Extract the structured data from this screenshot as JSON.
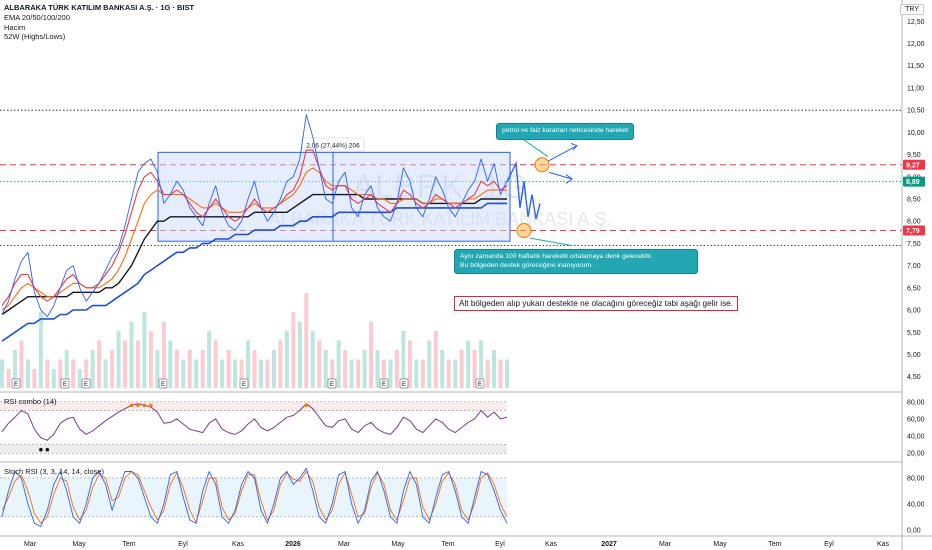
{
  "header": {
    "title": "ALBARAKA TÜRK KATILIM BANKASI A.Ş. · 1G · BIST",
    "indicators": [
      "EMA 20/50/100/200",
      "Hacim",
      "52W (Highs/Lows)"
    ],
    "currency": "TRY"
  },
  "watermark": {
    "symbol": "ALBRK, 1G",
    "name": "ALBARAKA TÜRK KATILIM BANKASI A.Ş."
  },
  "price_axis": {
    "ticks": [
      "12,50",
      "12,00",
      "11,50",
      "11,00",
      "10,50",
      "10,00",
      "9,50",
      "9,00",
      "8,50",
      "8,00",
      "7,50",
      "7,00",
      "6,50",
      "6,00",
      "5,50",
      "5,00",
      "4,50"
    ],
    "labels": {
      "upper_level": "9,27",
      "last_price": "8,89",
      "lower_level": "7,79"
    }
  },
  "rsi_pane": {
    "label": "RSI combo (14)",
    "ticks": [
      "80,00",
      "60,00",
      "40,00",
      "20,00"
    ]
  },
  "stoch_pane": {
    "label": "Stoch RSI (3, 3, 14, 14, close)",
    "ticks": [
      "80,00",
      "40,00",
      "0,00"
    ]
  },
  "time_axis": {
    "labels": [
      "Mar",
      "May",
      "Tem",
      "Eyl",
      "Kas",
      "2026",
      "Mar",
      "May",
      "Tem",
      "Eyl",
      "Kas",
      "2027",
      "Mar",
      "May",
      "Tem",
      "Eyl",
      "Kas"
    ]
  },
  "annotations": {
    "range_measure": "2,06 (27,44%) 206",
    "note_top": "petrol ve faiz kararları neticesinde hareket",
    "note_bottom_1": "Aynı zamanda 100 haftalık hareketli ortalamaya denk gelecektir.",
    "note_bottom_2": "Bu bölgeden destek göreceğine inanıyorum.",
    "red_note": "Alt bölgeden alıp yukarı destekte ne olacağını göreceğiz tabi aşağı gelir ise."
  },
  "event_markers": [
    "E",
    "E",
    "E",
    "E",
    "E",
    "E",
    "E",
    "E",
    "E"
  ],
  "colors": {
    "price": "#2962ff",
    "ema20": "#f23645",
    "ema50": "#ff6d00",
    "ema100": "#131722",
    "ema200": "#1e4fd6",
    "level": "#f23645",
    "range_fill": "#c8d6ff",
    "annotation": "#22a7b3"
  },
  "chart_data": {
    "type": "line",
    "price_ylim": [
      4.2,
      12.8
    ],
    "levels": {
      "resistance": 9.27,
      "last": 8.89,
      "support": 7.79,
      "high_dotted": 10.5,
      "low_dotted": 7.45
    },
    "range_box": {
      "top": 9.55,
      "bottom": 7.55
    },
    "price_series": [
      5.9,
      6.2,
      6.7,
      7.1,
      7.3,
      6.4,
      6.0,
      5.85,
      6.1,
      6.5,
      6.9,
      7.0,
      6.5,
      6.2,
      6.4,
      6.6,
      6.9,
      7.2,
      7.4,
      7.9,
      8.5,
      9.1,
      9.3,
      9.4,
      9.1,
      8.4,
      8.6,
      8.9,
      8.7,
      8.3,
      8.1,
      7.9,
      8.4,
      8.8,
      8.2,
      7.9,
      7.8,
      8.0,
      8.5,
      8.9,
      8.3,
      8.0,
      8.2,
      8.5,
      8.9,
      9.0,
      9.4,
      10.4,
      9.9,
      9.2,
      8.5,
      8.4,
      8.9,
      9.1,
      8.3,
      8.1,
      8.6,
      8.8,
      8.3,
      8.1,
      8.0,
      8.4,
      9.2,
      8.9,
      8.3,
      8.1,
      8.5,
      9.0,
      8.7,
      8.3,
      8.1,
      8.4,
      8.7,
      8.9,
      9.4,
      8.9,
      9.3,
      8.6,
      8.9
    ],
    "ema20": [
      6.1,
      6.3,
      6.6,
      6.8,
      6.8,
      6.5,
      6.3,
      6.2,
      6.3,
      6.5,
      6.7,
      6.8,
      6.6,
      6.5,
      6.5,
      6.6,
      6.8,
      7.0,
      7.3,
      7.7,
      8.2,
      8.7,
      9.0,
      9.1,
      8.9,
      8.6,
      8.6,
      8.7,
      8.6,
      8.4,
      8.2,
      8.1,
      8.3,
      8.5,
      8.3,
      8.1,
      8.0,
      8.1,
      8.3,
      8.5,
      8.3,
      8.2,
      8.3,
      8.4,
      8.6,
      8.7,
      9.0,
      9.6,
      9.6,
      9.2,
      8.8,
      8.7,
      8.8,
      8.8,
      8.5,
      8.4,
      8.5,
      8.6,
      8.4,
      8.3,
      8.2,
      8.4,
      8.7,
      8.6,
      8.4,
      8.3,
      8.4,
      8.6,
      8.5,
      8.4,
      8.3,
      8.4,
      8.5,
      8.6,
      8.9,
      8.8,
      8.9,
      8.7,
      8.8
    ],
    "ema50": [
      6.0,
      6.1,
      6.3,
      6.5,
      6.6,
      6.5,
      6.4,
      6.3,
      6.3,
      6.4,
      6.5,
      6.6,
      6.6,
      6.5,
      6.5,
      6.5,
      6.6,
      6.7,
      6.9,
      7.2,
      7.6,
      8.0,
      8.4,
      8.6,
      8.7,
      8.6,
      8.6,
      8.6,
      8.6,
      8.5,
      8.4,
      8.3,
      8.3,
      8.4,
      8.3,
      8.2,
      8.2,
      8.2,
      8.3,
      8.4,
      8.3,
      8.3,
      8.3,
      8.4,
      8.5,
      8.6,
      8.8,
      9.1,
      9.2,
      9.1,
      8.9,
      8.8,
      8.8,
      8.8,
      8.7,
      8.6,
      8.6,
      8.6,
      8.5,
      8.5,
      8.4,
      8.4,
      8.5,
      8.5,
      8.5,
      8.4,
      8.4,
      8.5,
      8.5,
      8.4,
      8.4,
      8.4,
      8.5,
      8.5,
      8.6,
      8.7,
      8.7,
      8.7,
      8.7
    ],
    "ema100": [
      5.9,
      6.0,
      6.1,
      6.2,
      6.3,
      6.3,
      6.3,
      6.3,
      6.3,
      6.3,
      6.3,
      6.4,
      6.4,
      6.4,
      6.4,
      6.4,
      6.5,
      6.5,
      6.6,
      6.8,
      7.0,
      7.3,
      7.6,
      7.8,
      8.0,
      8.0,
      8.1,
      8.1,
      8.1,
      8.1,
      8.1,
      8.1,
      8.1,
      8.1,
      8.1,
      8.1,
      8.1,
      8.1,
      8.1,
      8.2,
      8.2,
      8.2,
      8.2,
      8.2,
      8.2,
      8.3,
      8.4,
      8.5,
      8.6,
      8.6,
      8.6,
      8.6,
      8.6,
      8.6,
      8.6,
      8.6,
      8.5,
      8.5,
      8.5,
      8.5,
      8.5,
      8.5,
      8.5,
      8.5,
      8.5,
      8.4,
      8.4,
      8.4,
      8.4,
      8.4,
      8.4,
      8.4,
      8.4,
      8.4,
      8.5,
      8.5,
      8.5,
      8.5,
      8.5
    ],
    "ema200": [
      5.3,
      5.4,
      5.5,
      5.6,
      5.7,
      5.7,
      5.8,
      5.8,
      5.8,
      5.9,
      5.9,
      6.0,
      6.0,
      6.0,
      6.1,
      6.1,
      6.1,
      6.2,
      6.3,
      6.4,
      6.5,
      6.6,
      6.8,
      6.9,
      7.0,
      7.1,
      7.2,
      7.3,
      7.3,
      7.4,
      7.4,
      7.5,
      7.5,
      7.6,
      7.6,
      7.6,
      7.7,
      7.7,
      7.7,
      7.8,
      7.8,
      7.8,
      7.8,
      7.9,
      7.9,
      7.9,
      8.0,
      8.0,
      8.1,
      8.1,
      8.1,
      8.1,
      8.2,
      8.2,
      8.2,
      8.2,
      8.2,
      8.2,
      8.2,
      8.2,
      8.2,
      8.3,
      8.3,
      8.3,
      8.3,
      8.3,
      8.3,
      8.3,
      8.3,
      8.3,
      8.3,
      8.3,
      8.3,
      8.3,
      8.3,
      8.4,
      8.4,
      8.4,
      8.4
    ],
    "rsi": [
      45,
      55,
      62,
      70,
      66,
      48,
      38,
      35,
      42,
      55,
      60,
      62,
      48,
      42,
      46,
      52,
      58,
      63,
      68,
      72,
      76,
      78,
      76,
      74,
      68,
      55,
      56,
      60,
      54,
      48,
      46,
      44,
      55,
      60,
      48,
      44,
      42,
      46,
      54,
      60,
      50,
      46,
      50,
      56,
      62,
      64,
      70,
      78,
      72,
      62,
      52,
      50,
      58,
      60,
      48,
      44,
      52,
      56,
      48,
      44,
      42,
      50,
      62,
      58,
      48,
      44,
      52,
      60,
      56,
      48,
      44,
      50,
      56,
      60,
      70,
      62,
      68,
      60,
      62
    ],
    "stoch_k": [
      20,
      60,
      90,
      80,
      40,
      10,
      5,
      30,
      70,
      90,
      60,
      20,
      10,
      40,
      80,
      90,
      70,
      30,
      60,
      90,
      90,
      80,
      50,
      20,
      10,
      40,
      85,
      90,
      50,
      15,
      10,
      60,
      90,
      70,
      20,
      10,
      30,
      70,
      90,
      80,
      30,
      10,
      40,
      80,
      90,
      70,
      80,
      95,
      60,
      20,
      10,
      40,
      85,
      90,
      40,
      10,
      30,
      75,
      90,
      60,
      20,
      10,
      60,
      90,
      70,
      20,
      10,
      50,
      85,
      90,
      60,
      20,
      10,
      50,
      90,
      85,
      60,
      30,
      10
    ],
    "stoch_d": [
      30,
      50,
      75,
      85,
      60,
      25,
      10,
      20,
      55,
      80,
      75,
      35,
      15,
      30,
      65,
      85,
      80,
      45,
      50,
      80,
      90,
      85,
      60,
      35,
      15,
      30,
      70,
      88,
      65,
      30,
      12,
      45,
      80,
      80,
      35,
      15,
      25,
      60,
      85,
      85,
      45,
      15,
      30,
      70,
      88,
      78,
      75,
      90,
      75,
      35,
      15,
      30,
      70,
      88,
      55,
      20,
      25,
      65,
      88,
      70,
      30,
      15,
      45,
      80,
      80,
      35,
      15,
      40,
      75,
      88,
      70,
      30,
      15,
      40,
      80,
      88,
      70,
      40,
      20
    ],
    "volume": [
      0.3,
      0.2,
      0.4,
      0.5,
      0.3,
      0.2,
      0.8,
      0.3,
      0.2,
      0.3,
      0.4,
      0.3,
      0.2,
      0.3,
      0.4,
      0.5,
      0.3,
      0.4,
      0.6,
      0.5,
      0.7,
      0.5,
      0.8,
      0.6,
      0.4,
      0.7,
      0.5,
      0.4,
      0.3,
      0.4,
      0.3,
      0.4,
      0.6,
      0.5,
      0.3,
      0.4,
      0.3,
      0.3,
      0.5,
      0.4,
      0.3,
      0.3,
      0.4,
      0.5,
      0.6,
      0.8,
      0.7,
      1.0,
      0.6,
      0.5,
      0.4,
      0.3,
      0.5,
      0.4,
      0.3,
      0.3,
      0.4,
      0.7,
      0.4,
      0.3,
      0.3,
      0.4,
      0.6,
      0.5,
      0.3,
      0.3,
      0.5,
      0.6,
      0.4,
      0.3,
      0.3,
      0.4,
      0.5,
      0.4,
      0.5,
      0.3,
      0.4,
      0.3,
      0.3
    ]
  }
}
